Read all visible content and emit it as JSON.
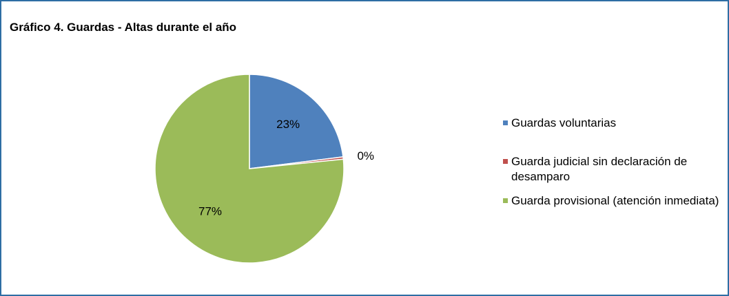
{
  "chart_data": {
    "type": "pie",
    "title": "Gráfico 4. Guardas - Altas durante el año",
    "categories": [
      "Guardas voluntarias",
      "Guarda judicial sin declaración de desamparo",
      "Guarda provisional (atención inmediata)"
    ],
    "values": [
      23,
      0.4,
      76.6
    ],
    "value_labels": [
      "23%",
      "0%",
      "77%"
    ],
    "colors": [
      "#4f81bd",
      "#c0504d",
      "#9bbb59"
    ],
    "legend": "right"
  }
}
